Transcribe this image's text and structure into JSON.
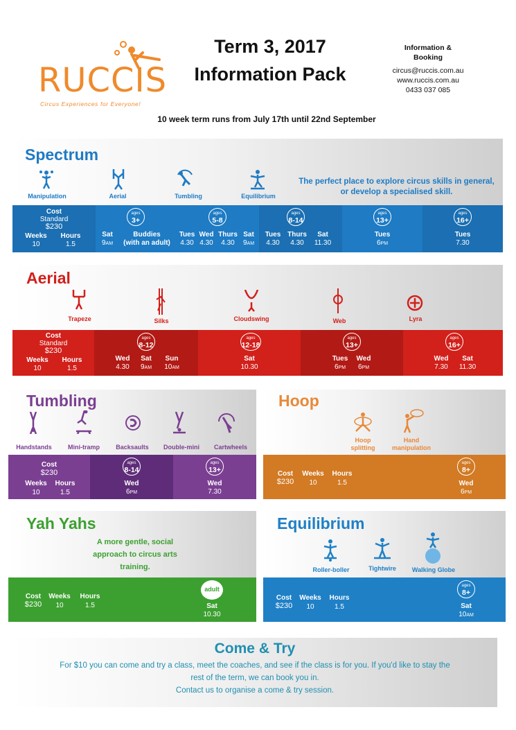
{
  "header": {
    "logo_text": "RUCCIS",
    "tagline": "Circus Experiences for Everyone!",
    "title_line1": "Term 3, 2017",
    "title_line2": "Information Pack",
    "info_heading1": "Information &",
    "info_heading2": "Booking",
    "email": "circus@ruccis.com.au",
    "website": "www.ruccis.com.au",
    "phone": "0433 037 085",
    "term_line": "10 week term runs from July 17th until  22nd September"
  },
  "colors": {
    "spectrum": "#1e7bc4",
    "aerial": "#d2201b",
    "tumbling": "#7b3f92",
    "hoop": "#d27a24",
    "yahyahs": "#3ca030",
    "equilibrium": "#1f80c6"
  },
  "spectrum": {
    "title": "Spectrum",
    "activities": [
      "Manipulation",
      "Aerial",
      "Tumbling",
      "Equilibrium"
    ],
    "tagline1": "The perfect place to explore circus skills in general,",
    "tagline2": "or develop a specialised skill.",
    "cost_label": "Cost",
    "standard": "Standard",
    "price": "$230",
    "weeks_label": "Weeks",
    "weeks": "10",
    "hours_label": "Hours",
    "hours": "1.5",
    "ages_word": "ages",
    "g1": {
      "age": "3+",
      "d1": "Sat",
      "t1": "9",
      "s1": "AM",
      "d2": "Buddies",
      "n2": "(with an adult)"
    },
    "g2": {
      "age": "5-8",
      "d1": "Tues",
      "t1": "4.30",
      "d2": "Wed",
      "t2": "4.30",
      "d3": "Thurs",
      "t3": "4.30",
      "d4": "Sat",
      "t4": "9",
      "s4": "AM"
    },
    "g3": {
      "age": "8-14",
      "d1": "Tues",
      "t1": "4.30",
      "d2": "Thurs",
      "t2": "4.30",
      "d3": "Sat",
      "t3": "11.30"
    },
    "g4": {
      "age": "13+",
      "d1": "Tues",
      "t1": "6",
      "s1": "PM"
    },
    "g5": {
      "age": "16+",
      "d1": "Tues",
      "t1": "7.30"
    }
  },
  "aerial": {
    "title": "Aerial",
    "activities": [
      "Trapeze",
      "Silks",
      "Cloudswing",
      "Web",
      "Lyra"
    ],
    "cost_label": "Cost",
    "standard": "Standard",
    "price": "$230",
    "weeks_label": "Weeks",
    "weeks": "10",
    "hours_label": "Hours",
    "hours": "1.5",
    "ages_word": "ages",
    "g1": {
      "age": "8-12",
      "d1": "Wed",
      "t1": "4.30",
      "d2": "Sat",
      "t2": "9",
      "s2": "AM",
      "d3": "Sun",
      "t3": "10",
      "s3": "AM"
    },
    "g2": {
      "age": "12-18",
      "d1": "Sat",
      "t1": "10.30"
    },
    "g3": {
      "age": "13+",
      "d1": "Tues",
      "t1": "6",
      "s1": "PM",
      "d2": "Wed",
      "t2": "6",
      "s2": "PM"
    },
    "g4": {
      "age": "16+",
      "d1": "Wed",
      "t1": "7.30",
      "d2": "Sat",
      "t2": "11.30"
    }
  },
  "tumbling": {
    "title": "Tumbling",
    "activities": [
      "Handstands",
      "Mini-tramp",
      "Backsaults",
      "Double-mini",
      "Cartwheels"
    ],
    "cost_label": "Cost",
    "price": "$230",
    "weeks_label": "Weeks",
    "weeks": "10",
    "hours_label": "Hours",
    "hours": "1.5",
    "ages_word": "ages",
    "g1": {
      "age": "8-14",
      "d1": "Wed",
      "t1": "6",
      "s1": "PM"
    },
    "g2": {
      "age": "13+",
      "d1": "Wed",
      "t1": "7.30"
    }
  },
  "hoop": {
    "title": "Hoop",
    "act1a": "Hoop",
    "act1b": "splitting",
    "act2a": "Hand",
    "act2b": "manipulation",
    "cost_label": "Cost",
    "price": "$230",
    "weeks_label": "Weeks",
    "weeks": "10",
    "hours_label": "Hours",
    "hours": "1.5",
    "ages_word": "ages",
    "g1": {
      "age": "8+",
      "d1": "Wed",
      "t1": "6",
      "s1": "PM"
    }
  },
  "yahyahs": {
    "title": "Yah Yahs",
    "tag1": "A more gentle, social",
    "tag2": "approach to circus arts",
    "tag3": "training.",
    "cost_label": "Cost",
    "price": "$230",
    "weeks_label": "Weeks",
    "weeks": "10",
    "hours_label": "Hours",
    "hours": "1.5",
    "g1": {
      "age": "adult",
      "d1": "Sat",
      "t1": "10.30"
    }
  },
  "equilibrium": {
    "title": "Equilibrium",
    "activities": [
      "Roller-boller",
      "Tightwire",
      "Walking Globe"
    ],
    "cost_label": "Cost",
    "price": "$230",
    "weeks_label": "Weeks",
    "weeks": "10",
    "hours_label": "Hours",
    "hours": "1.5",
    "ages_word": "ages",
    "g1": {
      "age": "8+",
      "d1": "Sat",
      "t1": "10",
      "s1": "AM"
    }
  },
  "cometry": {
    "title": "Come & Try",
    "line1": "For $10 you can come and try a class, meet the coaches, and see if the class is for you.  If you'd like to stay the",
    "line2": "rest of the term, we can book you in.",
    "line3": "Contact us to organise a come & try session."
  }
}
